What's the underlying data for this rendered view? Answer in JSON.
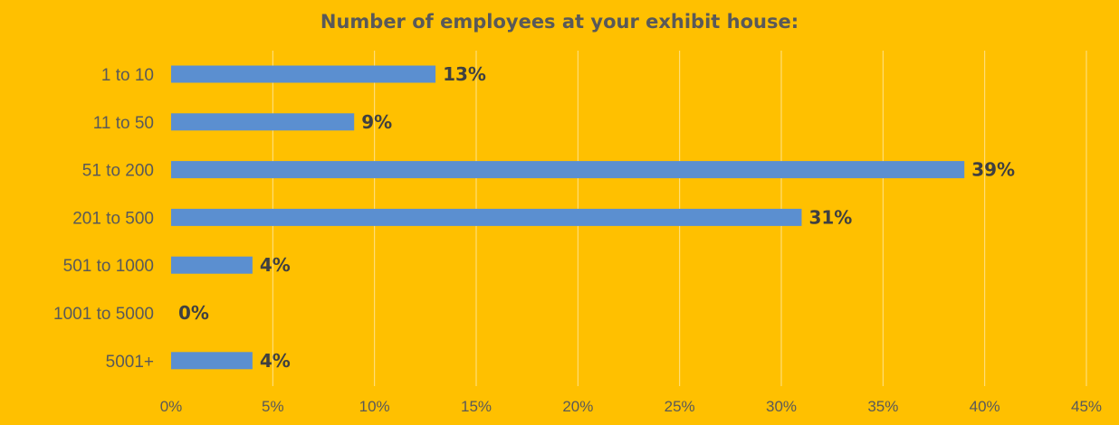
{
  "chart_data": {
    "type": "bar",
    "orientation": "horizontal",
    "title": "Number of employees at your exhibit house:",
    "categories": [
      "1 to 10",
      "11 to 50",
      "51 to 200",
      "201 to 500",
      "501 to 1000",
      "1001 to 5000",
      "5001+"
    ],
    "values": [
      13,
      9,
      39,
      31,
      4,
      0,
      4
    ],
    "data_labels": [
      "13%",
      "9%",
      "39%",
      "31%",
      "4%",
      "0%",
      "4%"
    ],
    "xlim": [
      0,
      45
    ],
    "xticks": [
      0,
      5,
      10,
      15,
      20,
      25,
      30,
      35,
      40,
      45
    ],
    "xtick_labels": [
      "0%",
      "5%",
      "10%",
      "15%",
      "20%",
      "25%",
      "30%",
      "35%",
      "40%",
      "45%"
    ],
    "xlabel": "",
    "ylabel": "",
    "grid": "vertical",
    "legend": "none",
    "colors": {
      "background": "#FFC000",
      "bar": "#5B8FD0",
      "text": "#595959",
      "data_label": "#404040",
      "grid": "#FFFFFF"
    }
  }
}
